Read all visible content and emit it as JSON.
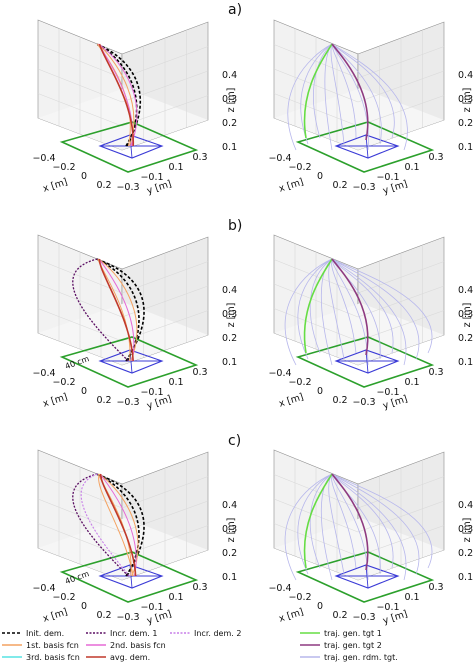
{
  "figure": {
    "panel_labels": [
      "a)",
      "b)",
      "c)"
    ]
  },
  "axes_text": {
    "x_label": "x [m]",
    "y_label": "y [m]",
    "z_label": "z [m]",
    "x_ticks": [
      "−0.4",
      "−0.2",
      "0",
      "0.2"
    ],
    "y_ticks": [
      "−0.3",
      "−0.1",
      "0.1",
      "0.3"
    ],
    "z_ticks": [
      "0.1",
      "0.2",
      "0.3",
      "0.4"
    ]
  },
  "annotation": "40 cm",
  "legend_left": [
    {
      "label": "Init. dem.",
      "color": "#000000",
      "dash": "3,2"
    },
    {
      "label": "Incr. dem. 1",
      "color": "#5b0f63",
      "dash": "2,1.5"
    },
    {
      "label": "Incr. dem. 2",
      "color": "#c77ee8",
      "dash": "2,1.5"
    },
    {
      "label": "1st. basis fcn",
      "color": "#f4a261",
      "dash": ""
    },
    {
      "label": "2nd. basis fcn",
      "color": "#e66ad6",
      "dash": ""
    },
    {
      "label": "3rd. basis fcn",
      "color": "#56e3e3",
      "dash": ""
    },
    {
      "label": "avg. dem.",
      "color": "#c0392b",
      "dash": ""
    }
  ],
  "legend_right": [
    {
      "label": "traj. gen. tgt 1",
      "color": "#66dd44"
    },
    {
      "label": "traj. gen. tgt 2",
      "color": "#8e3a80"
    },
    {
      "label": "traj. gen. rdm. tgt.",
      "color": "#b7b7ec"
    }
  ],
  "colors": {
    "floor_square": "#2ca02c",
    "target_frame": "#3b3bd6",
    "grid": "#d9d9d9",
    "pane": "#f2f2f2",
    "edge": "#8c8c8c"
  },
  "chart_data": [
    {
      "type": "line",
      "panel": "a) left",
      "series": [
        {
          "name": "Init. dem.",
          "count": 2
        },
        {
          "name": "1st. basis fcn",
          "count": 2
        },
        {
          "name": "2nd. basis fcn",
          "count": 2
        },
        {
          "name": "avg. dem.",
          "count": 1
        }
      ]
    },
    {
      "type": "line",
      "panel": "a) right",
      "series": [
        {
          "name": "traj. gen. tgt 1",
          "count": 1
        },
        {
          "name": "traj. gen. tgt 2",
          "count": 1
        },
        {
          "name": "traj. gen. rdm. tgt.",
          "count": 10
        }
      ]
    },
    {
      "type": "line",
      "panel": "b) left",
      "series": [
        {
          "name": "Init. dem.",
          "count": 2
        },
        {
          "name": "Incr. dem. 1",
          "count": 1
        },
        {
          "name": "1st. basis fcn",
          "count": 2
        },
        {
          "name": "avg. dem.",
          "count": 1
        }
      ]
    },
    {
      "type": "line",
      "panel": "b) right",
      "series": [
        {
          "name": "traj. gen. tgt 1",
          "count": 1
        },
        {
          "name": "traj. gen. tgt 2",
          "count": 1
        },
        {
          "name": "traj. gen. rdm. tgt.",
          "count": 12
        }
      ]
    },
    {
      "type": "line",
      "panel": "c) left",
      "series": [
        {
          "name": "Init. dem.",
          "count": 2
        },
        {
          "name": "Incr. dem. 1",
          "count": 1
        },
        {
          "name": "Incr. dem. 2",
          "count": 1
        },
        {
          "name": "1st. basis fcn",
          "count": 3
        },
        {
          "name": "avg. dem.",
          "count": 1
        }
      ]
    },
    {
      "type": "line",
      "panel": "c) right",
      "series": [
        {
          "name": "traj. gen. tgt 1",
          "count": 1
        },
        {
          "name": "traj. gen. tgt 2",
          "count": 1
        },
        {
          "name": "traj. gen. rdm. tgt.",
          "count": 12
        }
      ]
    }
  ]
}
